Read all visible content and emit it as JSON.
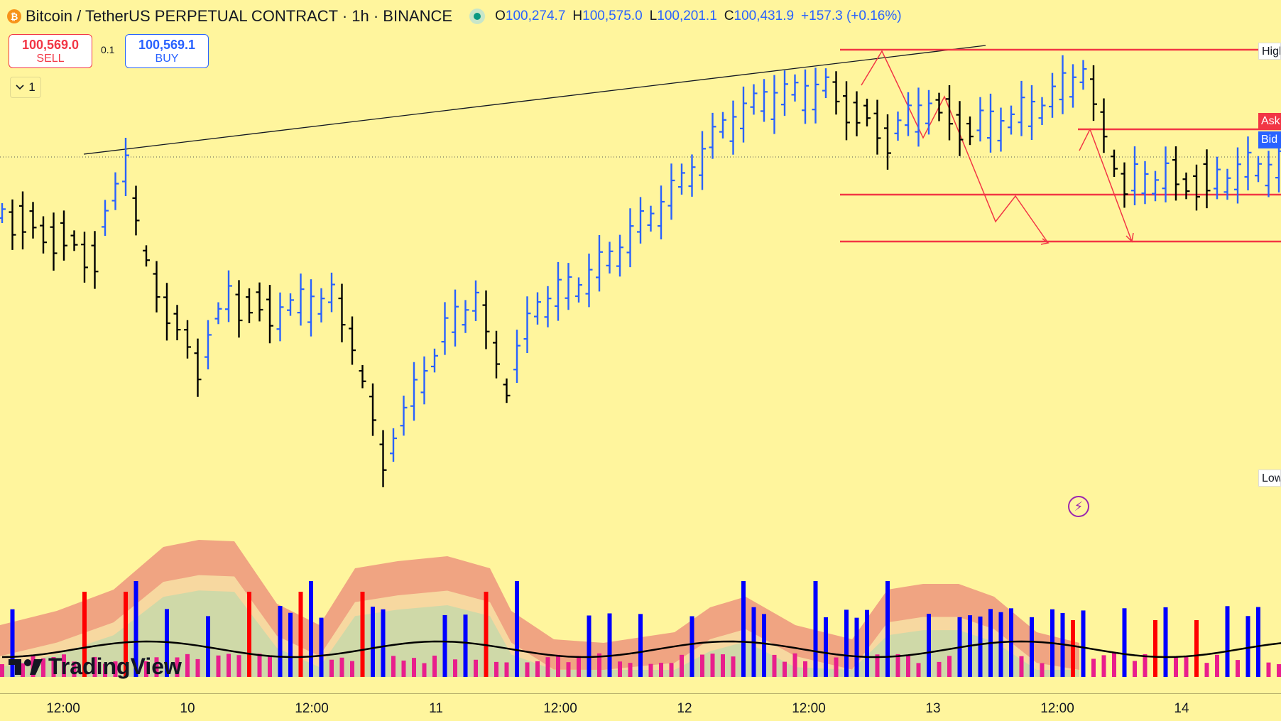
{
  "header": {
    "coin_glyph": "₿",
    "title": "Bitcoin / TetherUS PERPETUAL CONTRACT · 1h · BINANCE",
    "open_label": "O",
    "open": "100,274.7",
    "high_label": "H",
    "high": "100,575.0",
    "low_label": "L",
    "low": "100,201.1",
    "close_label": "C",
    "close": "100,431.9",
    "change": "+157.3 (+0.16%)"
  },
  "trading": {
    "sell_price": "100,569.0",
    "sell_label": "SELL",
    "spread": "0.1",
    "buy_price": "100,569.1",
    "buy_label": "BUY",
    "collapse_label": "1"
  },
  "price_labels": {
    "high": "High",
    "ask": "Ask",
    "bid": "Bid",
    "low": "Low"
  },
  "branding": {
    "logo_text": "TradingView"
  },
  "icons": [
    "bitcoin-icon",
    "live-status-icon",
    "chevron-down-icon",
    "lightning-icon",
    "tradingview-logo-icon"
  ],
  "colors": {
    "background": "#fff59d",
    "up_bar": "#2962ff",
    "down_bar": "#000000",
    "level_line": "#f23645",
    "projection": "#f23645",
    "volume_up": "#0000ff",
    "volume_down": "#ff0000",
    "volume_other": "#e91e8c",
    "band_outer": "#f0a482",
    "band_mid": "#f7d8a0",
    "band_inner": "#cfd9a8"
  },
  "chart_data": {
    "type": "ohlc",
    "xaxis_ticks": [
      "12:00",
      "10",
      "12:00",
      "11",
      "12:00",
      "12",
      "12:00",
      "13",
      "12:00",
      "14"
    ],
    "grid": false,
    "current_price": 100569.0,
    "price_levels": [
      "High",
      "Ask",
      "Bid",
      "Low"
    ],
    "indicator": "volume with moving average and bands"
  }
}
